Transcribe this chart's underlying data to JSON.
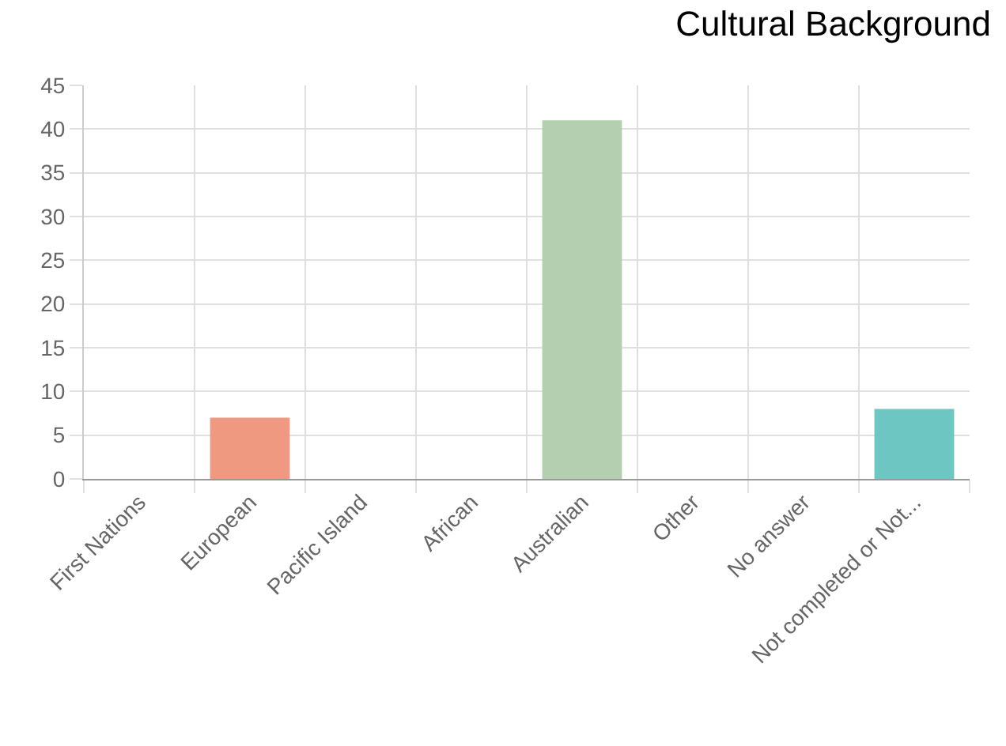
{
  "chart_data": {
    "type": "bar",
    "title": "Cultural Background",
    "categories": [
      "First Nations",
      "European",
      "Pacific Island",
      "African",
      "Australian",
      "Other",
      "No answer",
      "Not completed or Not..."
    ],
    "values": [
      0,
      7,
      0,
      0,
      41,
      0,
      0,
      8
    ],
    "colors": [
      "#f0a892",
      "#ef9a80",
      "#f5d089",
      "#a3c4e0",
      "#b3cfb0",
      "#c9b3d9",
      "#d9d9d9",
      "#6ec6c2"
    ],
    "ylim": [
      0,
      45
    ],
    "yticks": [
      0,
      5,
      10,
      15,
      20,
      25,
      30,
      35,
      40,
      45
    ],
    "grid": true
  }
}
